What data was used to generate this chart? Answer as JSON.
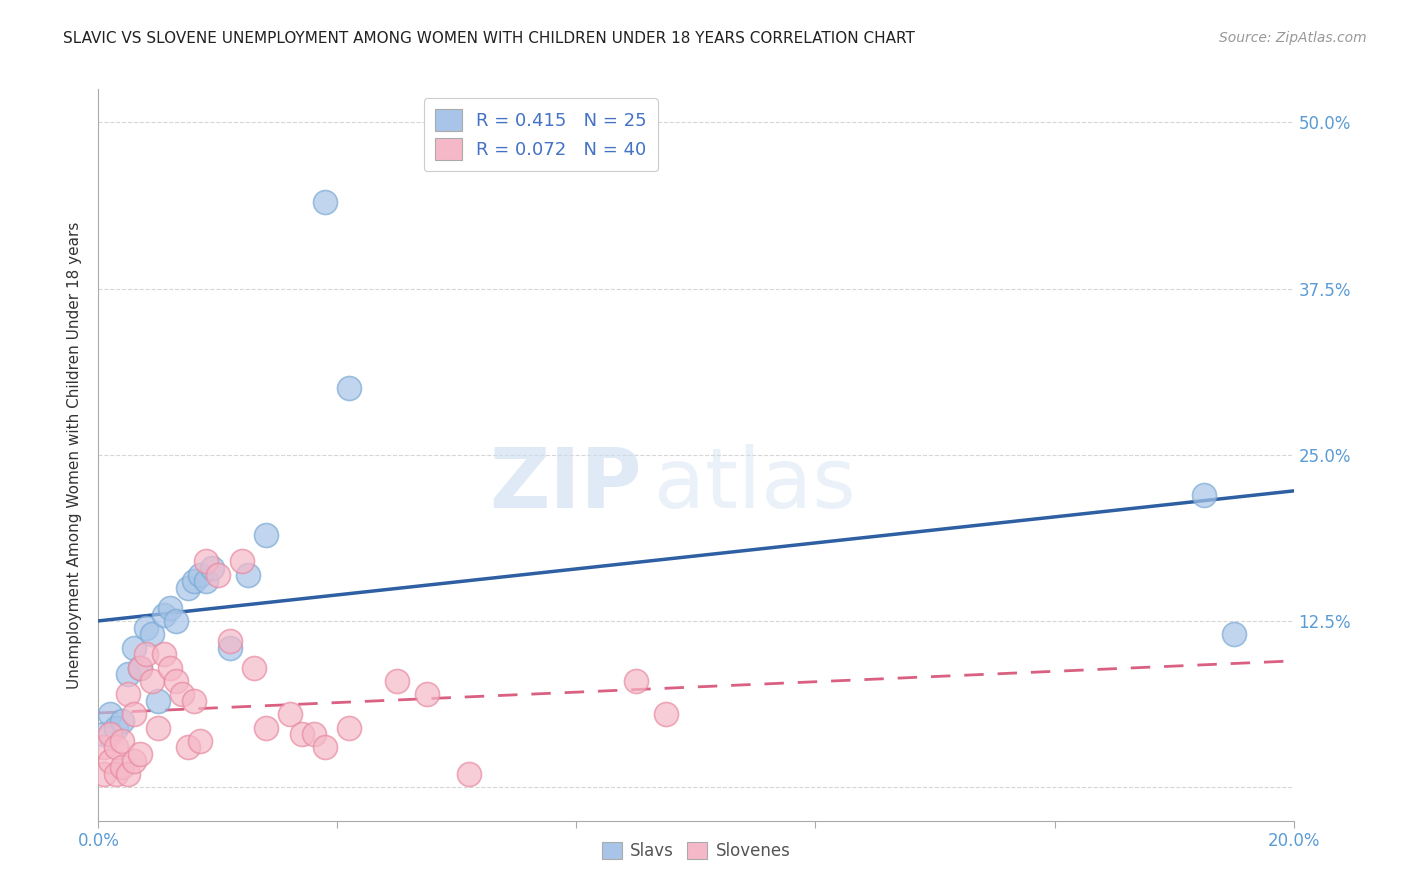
{
  "title": "SLAVIC VS SLOVENE UNEMPLOYMENT AMONG WOMEN WITH CHILDREN UNDER 18 YEARS CORRELATION CHART",
  "source": "Source: ZipAtlas.com",
  "ylabel": "Unemployment Among Women with Children Under 18 years",
  "xlim": [
    0.0,
    0.2
  ],
  "ylim": [
    -0.025,
    0.525
  ],
  "yticks": [
    0.0,
    0.125,
    0.25,
    0.375,
    0.5
  ],
  "ytick_labels": [
    "",
    "12.5%",
    "25.0%",
    "37.5%",
    "50.0%"
  ],
  "xticks": [
    0.0,
    0.04,
    0.08,
    0.12,
    0.16,
    0.2
  ],
  "xtick_labels": [
    "0.0%",
    "",
    "",
    "",
    "",
    "20.0%"
  ],
  "slavs_color": "#a8c4e8",
  "slavs_edge": "#7aaad4",
  "slovenes_color": "#f5b8c8",
  "slovenes_edge": "#e88aa0",
  "slavs_line_color": "#2e5fa3",
  "slovenes_line_color": "#d96080",
  "slavs_R": 0.415,
  "slavs_N": 25,
  "slovenes_R": 0.072,
  "slovenes_N": 40,
  "slavs_x": [
    0.001,
    0.002,
    0.003,
    0.004,
    0.005,
    0.006,
    0.007,
    0.008,
    0.009,
    0.01,
    0.011,
    0.012,
    0.013,
    0.015,
    0.016,
    0.017,
    0.018,
    0.019,
    0.022,
    0.025,
    0.028,
    0.038,
    0.042,
    0.185,
    0.19
  ],
  "slavs_y": [
    0.04,
    0.055,
    0.045,
    0.05,
    0.085,
    0.105,
    0.09,
    0.12,
    0.115,
    0.065,
    0.13,
    0.135,
    0.125,
    0.15,
    0.155,
    0.16,
    0.155,
    0.165,
    0.105,
    0.16,
    0.19,
    0.44,
    0.3,
    0.22,
    0.115
  ],
  "slovenes_x": [
    0.001,
    0.001,
    0.002,
    0.002,
    0.003,
    0.003,
    0.004,
    0.004,
    0.005,
    0.005,
    0.006,
    0.006,
    0.007,
    0.007,
    0.008,
    0.009,
    0.01,
    0.011,
    0.012,
    0.013,
    0.014,
    0.015,
    0.016,
    0.017,
    0.018,
    0.02,
    0.022,
    0.024,
    0.026,
    0.028,
    0.032,
    0.034,
    0.036,
    0.038,
    0.042,
    0.05,
    0.055,
    0.062,
    0.09,
    0.095
  ],
  "slovenes_y": [
    0.01,
    0.03,
    0.02,
    0.04,
    0.01,
    0.03,
    0.015,
    0.035,
    0.01,
    0.07,
    0.02,
    0.055,
    0.025,
    0.09,
    0.1,
    0.08,
    0.045,
    0.1,
    0.09,
    0.08,
    0.07,
    0.03,
    0.065,
    0.035,
    0.17,
    0.16,
    0.11,
    0.17,
    0.09,
    0.045,
    0.055,
    0.04,
    0.04,
    0.03,
    0.045,
    0.08,
    0.07,
    0.01,
    0.08,
    0.055
  ],
  "watermark_zip": "ZIP",
  "watermark_atlas": "atlas",
  "background_color": "#ffffff",
  "grid_color": "#cccccc",
  "tick_label_color": "#5b9bd5",
  "title_color": "#222222",
  "axis_label_color": "#333333"
}
